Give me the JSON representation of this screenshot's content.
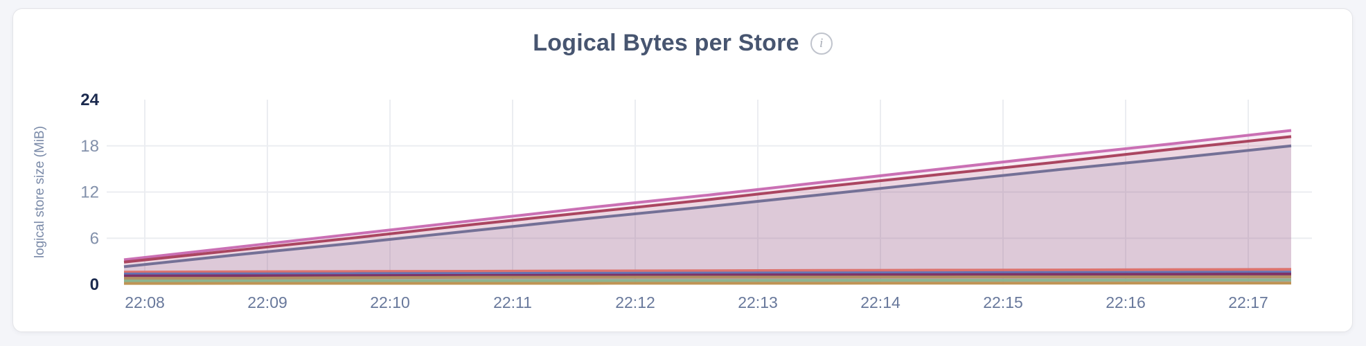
{
  "header": {
    "title": "Logical Bytes per Store",
    "info_glyph": "i"
  },
  "colors": {
    "page_background": "#f4f5f9",
    "card_background": "#ffffff",
    "card_border": "#e3e4e8",
    "title_text": "#475570",
    "grid_line": "#ebedf1",
    "axis_tick_strong": "#1b2a4e",
    "axis_tick_muted": "#8290aa",
    "x_tick_text": "#68789b"
  },
  "chart_data": {
    "type": "area",
    "title": "Logical Bytes per Store",
    "xlabel": "",
    "ylabel": "logical store size (MiB)",
    "ylim": [
      0,
      24
    ],
    "grid": true,
    "legend_position": "none",
    "y_ticks": [
      {
        "label": "24",
        "value": 24,
        "bold": true,
        "gridline": false
      },
      {
        "label": "18",
        "value": 18,
        "bold": false,
        "gridline": true
      },
      {
        "label": "12",
        "value": 12,
        "bold": false,
        "gridline": true
      },
      {
        "label": "6",
        "value": 6,
        "bold": false,
        "gridline": true
      },
      {
        "label": "0",
        "value": 0,
        "bold": true,
        "gridline": false
      }
    ],
    "x_ticks": [
      "22:08",
      "22:09",
      "22:10",
      "22:11",
      "22:12",
      "22:13",
      "22:14",
      "22:15",
      "22:16",
      "22:17"
    ],
    "x_range_note": "samples span ~22:07.8 to ~22:17.4, 11 evenly spaced points",
    "series": [
      {
        "color": "#c768b0",
        "values": [
          3.2,
          4.9,
          6.6,
          8.3,
          10.0,
          11.6,
          13.3,
          15.0,
          16.7,
          18.3,
          20.0
        ]
      },
      {
        "color": "#a63d58",
        "values": [
          2.9,
          4.5,
          6.1,
          7.8,
          9.4,
          11.0,
          12.7,
          14.3,
          15.9,
          17.6,
          19.2
        ]
      },
      {
        "color": "#6e6c92",
        "values": [
          2.3,
          3.9,
          5.4,
          7.0,
          8.6,
          10.1,
          11.7,
          13.3,
          14.9,
          16.4,
          18.0
        ]
      },
      {
        "color": "#db6f68",
        "values": [
          1.6,
          1.64,
          1.68,
          1.71,
          1.75,
          1.78,
          1.82,
          1.85,
          1.88,
          1.92,
          1.95
        ]
      },
      {
        "color": "#5f70b2",
        "values": [
          1.35,
          1.37,
          1.4,
          1.42,
          1.45,
          1.47,
          1.5,
          1.52,
          1.55,
          1.57,
          1.6
        ]
      },
      {
        "color": "#7c2d62",
        "values": [
          1.1,
          1.12,
          1.15,
          1.17,
          1.2,
          1.22,
          1.25,
          1.27,
          1.3,
          1.32,
          1.35
        ]
      },
      {
        "color": "#b08f5f",
        "values": [
          0.8,
          0.8,
          0.88,
          0.93,
          0.94,
          0.95,
          0.96,
          0.97,
          0.98,
          0.99,
          1.0
        ]
      },
      {
        "color": "#8ab58e",
        "values": [
          0.45,
          0.46,
          0.48,
          0.49,
          0.5,
          0.51,
          0.53,
          0.54,
          0.55,
          0.57,
          0.58
        ]
      },
      {
        "color": "#bf9350",
        "values": [
          0.12,
          0.13,
          0.13,
          0.14,
          0.14,
          0.15,
          0.15,
          0.16,
          0.16,
          0.17,
          0.17
        ]
      }
    ]
  }
}
